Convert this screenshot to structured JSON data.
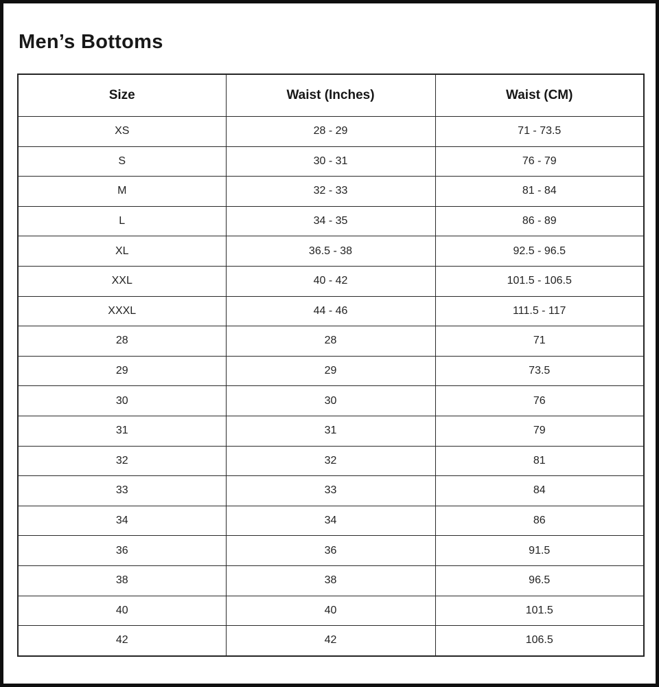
{
  "title": "Men’s Bottoms",
  "chart_data": {
    "type": "table",
    "title": "Men’s Bottoms",
    "columns": [
      "Size",
      "Waist (Inches)",
      "Waist (CM)"
    ],
    "rows": [
      [
        "XS",
        "28 - 29",
        "71 - 73.5"
      ],
      [
        "S",
        "30 - 31",
        "76 - 79"
      ],
      [
        "M",
        "32 - 33",
        "81 - 84"
      ],
      [
        "L",
        "34 - 35",
        "86 - 89"
      ],
      [
        "XL",
        "36.5 - 38",
        "92.5 - 96.5"
      ],
      [
        "XXL",
        "40 - 42",
        "101.5 - 106.5"
      ],
      [
        "XXXL",
        "44 - 46",
        "111.5 - 117"
      ],
      [
        "28",
        "28",
        "71"
      ],
      [
        "29",
        "29",
        "73.5"
      ],
      [
        "30",
        "30",
        "76"
      ],
      [
        "31",
        "31",
        "79"
      ],
      [
        "32",
        "32",
        "81"
      ],
      [
        "33",
        "33",
        "84"
      ],
      [
        "34",
        "34",
        "86"
      ],
      [
        "36",
        "36",
        "91.5"
      ],
      [
        "38",
        "38",
        "96.5"
      ],
      [
        "40",
        "40",
        "101.5"
      ],
      [
        "42",
        "42",
        "106.5"
      ]
    ]
  },
  "colors": {
    "background": "#ffffff",
    "text": "#1c1c1c",
    "grid_border": "#2a2a2a",
    "page_border": "#0f0f0f"
  }
}
